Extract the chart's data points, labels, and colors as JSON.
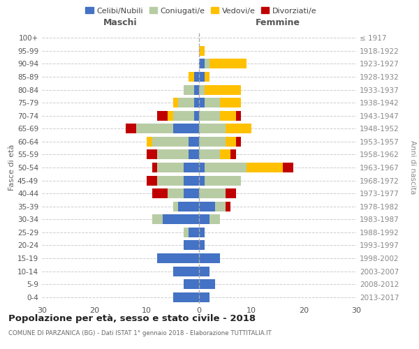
{
  "age_groups": [
    "0-4",
    "5-9",
    "10-14",
    "15-19",
    "20-24",
    "25-29",
    "30-34",
    "35-39",
    "40-44",
    "45-49",
    "50-54",
    "55-59",
    "60-64",
    "65-69",
    "70-74",
    "75-79",
    "80-84",
    "85-89",
    "90-94",
    "95-99",
    "100+"
  ],
  "birth_years": [
    "2013-2017",
    "2008-2012",
    "2003-2007",
    "1998-2002",
    "1993-1997",
    "1988-1992",
    "1983-1987",
    "1978-1982",
    "1973-1977",
    "1968-1972",
    "1963-1967",
    "1958-1962",
    "1953-1957",
    "1948-1952",
    "1943-1947",
    "1938-1942",
    "1933-1937",
    "1928-1932",
    "1923-1927",
    "1918-1922",
    "≤ 1917"
  ],
  "maschi": {
    "celibi": [
      5,
      3,
      5,
      8,
      3,
      2,
      7,
      4,
      3,
      3,
      3,
      2,
      2,
      5,
      1,
      1,
      1,
      1,
      0,
      0,
      0
    ],
    "coniugati": [
      0,
      0,
      0,
      0,
      0,
      1,
      2,
      1,
      3,
      5,
      5,
      6,
      7,
      7,
      4,
      3,
      2,
      0,
      0,
      0,
      0
    ],
    "vedovi": [
      0,
      0,
      0,
      0,
      0,
      0,
      0,
      0,
      0,
      0,
      0,
      0,
      1,
      0,
      1,
      1,
      0,
      1,
      0,
      0,
      0
    ],
    "divorziati": [
      0,
      0,
      0,
      0,
      0,
      0,
      0,
      0,
      3,
      2,
      1,
      2,
      0,
      2,
      2,
      0,
      0,
      0,
      0,
      0,
      0
    ]
  },
  "femmine": {
    "nubili": [
      2,
      3,
      2,
      4,
      1,
      1,
      2,
      3,
      0,
      1,
      1,
      0,
      0,
      0,
      0,
      1,
      0,
      1,
      1,
      0,
      0
    ],
    "coniugate": [
      0,
      0,
      0,
      0,
      0,
      0,
      2,
      2,
      5,
      7,
      8,
      4,
      5,
      5,
      4,
      3,
      1,
      0,
      1,
      0,
      0
    ],
    "vedove": [
      0,
      0,
      0,
      0,
      0,
      0,
      0,
      0,
      0,
      0,
      7,
      2,
      2,
      5,
      3,
      4,
      7,
      1,
      7,
      1,
      0
    ],
    "divorziate": [
      0,
      0,
      0,
      0,
      0,
      0,
      0,
      1,
      2,
      0,
      2,
      1,
      1,
      0,
      1,
      0,
      0,
      0,
      0,
      0,
      0
    ]
  },
  "colors": {
    "celibi_nubili": "#4472c4",
    "coniugati": "#b8cca4",
    "vedovi": "#ffc000",
    "divorziati": "#c00000"
  },
  "xlim": 30,
  "title": "Popolazione per età, sesso e stato civile - 2018",
  "subtitle": "COMUNE DI PARZANICA (BG) - Dati ISTAT 1° gennaio 2018 - Elaborazione TUTTITALIA.IT",
  "ylabel_left": "Fasce di età",
  "ylabel_right": "Anni di nascita",
  "xlabel_maschi": "Maschi",
  "xlabel_femmine": "Femmine",
  "legend_labels": [
    "Celibi/Nubili",
    "Coniugati/e",
    "Vedovi/e",
    "Divorziati/e"
  ],
  "background_color": "#ffffff",
  "grid_color": "#cccccc"
}
